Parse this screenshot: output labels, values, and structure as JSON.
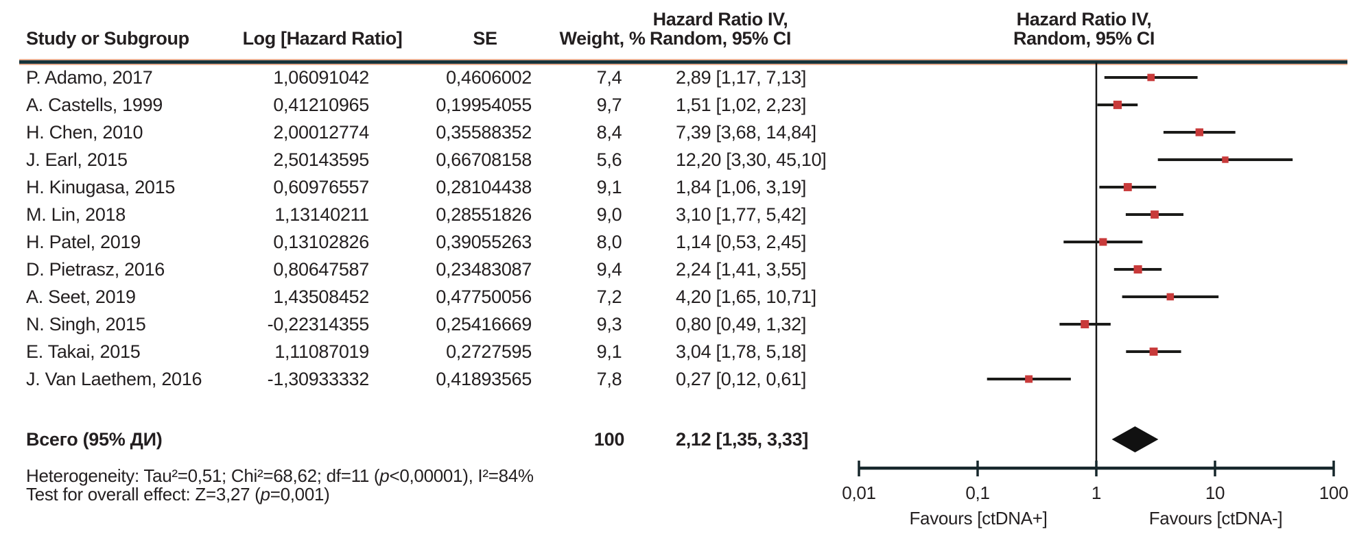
{
  "figure": {
    "headers": {
      "study": "Study or Subgroup",
      "log_hr": "Log [Hazard Ratio]",
      "se": "SE",
      "weight": "Weight, %",
      "hr_line1": "Hazard Ratio IV,",
      "hr_line2": "Random, 95% CI"
    },
    "footer": {
      "heterogeneity": [
        "Heterogeneity: Tau²=0,51; Chi²=68,62; df=11 (",
        "p",
        "<0,00001), I²=84%"
      ],
      "overall_effect": [
        "Test for overall effect: Z=3,27 (",
        "p",
        "=0,001)"
      ]
    },
    "colors": {
      "text": "#231f20",
      "ci_line": "#1b1b19",
      "null_line": "#141414",
      "axis": "#16272b",
      "marker": "#c83a3a",
      "diamond": "#111111",
      "separator": "#17333a",
      "separator_edge": "#e9b094"
    }
  },
  "chart_data": {
    "type": "forest",
    "x_scale": "log10",
    "xlim": [
      0.01,
      100
    ],
    "null_line": 1,
    "axis_ticks": [
      {
        "label": "0,01",
        "value": 0.01
      },
      {
        "label": "0,1",
        "value": 0.1
      },
      {
        "label": "1",
        "value": 1
      },
      {
        "label": "10",
        "value": 10
      },
      {
        "label": "100",
        "value": 100
      }
    ],
    "favours_left": "Favours [ctDNA+]",
    "favours_right": "Favours [ctDNA-]",
    "studies": [
      {
        "study": "P. Adamo, 2017",
        "log_hr": "1,06091042",
        "se": "0,4606002",
        "weight": "7,4",
        "ci_text": "2,89 [1,17, 7,13]",
        "hr": 2.89,
        "lo": 1.17,
        "hi": 7.13,
        "w": 7.4
      },
      {
        "study": "A. Castells, 1999",
        "log_hr": "0,41210965",
        "se": "0,19954055",
        "weight": "9,7",
        "ci_text": "1,51 [1,02, 2,23]",
        "hr": 1.51,
        "lo": 1.02,
        "hi": 2.23,
        "w": 9.7
      },
      {
        "study": "H. Chen, 2010",
        "log_hr": "2,00012774",
        "se": "0,35588352",
        "weight": "8,4",
        "ci_text": "7,39 [3,68, 14,84]",
        "hr": 7.39,
        "lo": 3.68,
        "hi": 14.84,
        "w": 8.4
      },
      {
        "study": "J. Earl, 2015",
        "log_hr": "2,50143595",
        "se": "0,66708158",
        "weight": "5,6",
        "ci_text": "12,20 [3,30, 45,10]",
        "hr": 12.2,
        "lo": 3.3,
        "hi": 45.1,
        "w": 5.6
      },
      {
        "study": "H. Kinugasa, 2015",
        "log_hr": "0,60976557",
        "se": "0,28104438",
        "weight": "9,1",
        "ci_text": "1,84 [1,06, 3,19]",
        "hr": 1.84,
        "lo": 1.06,
        "hi": 3.19,
        "w": 9.1
      },
      {
        "study": "M. Lin, 2018",
        "log_hr": "1,13140211",
        "se": "0,28551826",
        "weight": "9,0",
        "ci_text": "3,10 [1,77, 5,42]",
        "hr": 3.1,
        "lo": 1.77,
        "hi": 5.42,
        "w": 9.0
      },
      {
        "study": "H. Patel, 2019",
        "log_hr": "0,13102826",
        "se": "0,39055263",
        "weight": "8,0",
        "ci_text": "1,14 [0,53, 2,45]",
        "hr": 1.14,
        "lo": 0.53,
        "hi": 2.45,
        "w": 8.0
      },
      {
        "study": "D. Pietrasz, 2016",
        "log_hr": "0,80647587",
        "se": "0,23483087",
        "weight": "9,4",
        "ci_text": "2,24 [1,41, 3,55]",
        "hr": 2.24,
        "lo": 1.41,
        "hi": 3.55,
        "w": 9.4
      },
      {
        "study": "A. Seet, 2019",
        "log_hr": "1,43508452",
        "se": "0,47750056",
        "weight": "7,2",
        "ci_text": "4,20 [1,65, 10,71]",
        "hr": 4.2,
        "lo": 1.65,
        "hi": 10.71,
        "w": 7.2
      },
      {
        "study": "N. Singh, 2015",
        "log_hr": "-0,22314355",
        "se": "0,25416669",
        "weight": "9,3",
        "ci_text": "0,80 [0,49, 1,32]",
        "hr": 0.8,
        "lo": 0.49,
        "hi": 1.32,
        "w": 9.3
      },
      {
        "study": "E. Takai, 2015",
        "log_hr": "1,11087019",
        "se": "0,2727595",
        "weight": "9,1",
        "ci_text": "3,04 [1,78, 5,18]",
        "hr": 3.04,
        "lo": 1.78,
        "hi": 5.18,
        "w": 9.1
      },
      {
        "study": "J. Van Laethem, 2016",
        "log_hr": "-1,30933332",
        "se": "0,41893565",
        "weight": "7,8",
        "ci_text": "0,27 [0,12, 0,61]",
        "hr": 0.27,
        "lo": 0.12,
        "hi": 0.61,
        "w": 7.8
      }
    ],
    "total": {
      "label": "Всего (95% ДИ)",
      "weight": "100",
      "ci_text": "2,12 [1,35, 3,33]",
      "hr": 2.12,
      "lo": 1.35,
      "hi": 3.33
    }
  }
}
